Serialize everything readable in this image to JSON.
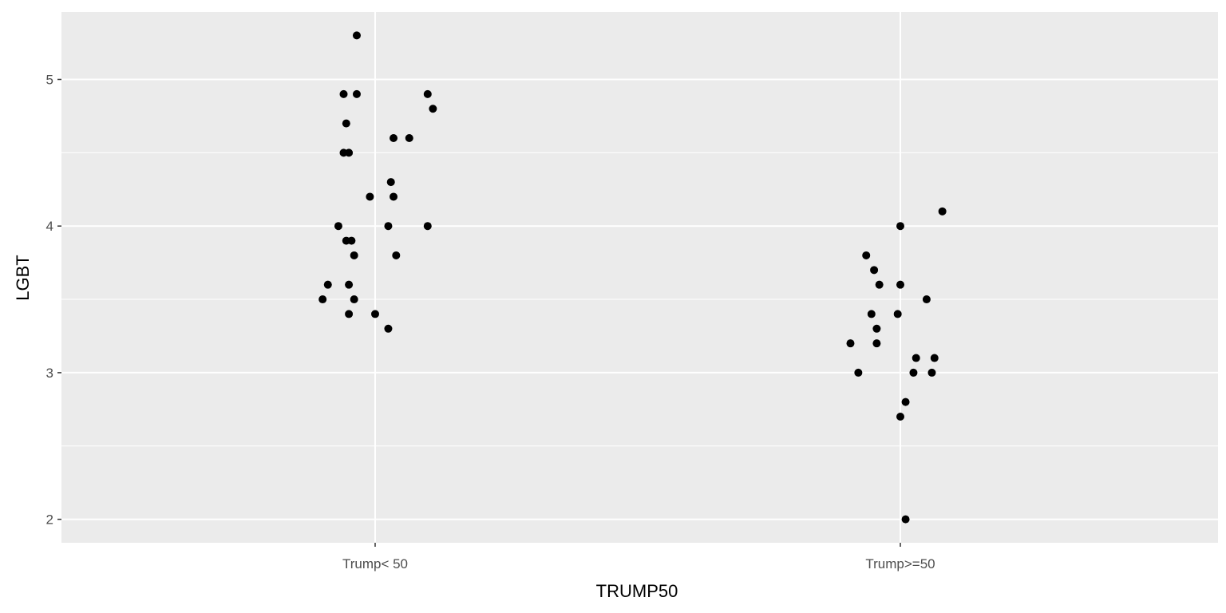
{
  "chart_data": {
    "type": "scatter",
    "title": "",
    "xlabel": "TRUMP50",
    "ylabel": "LGBT",
    "categories": [
      "Trump< 50",
      "Trump>=50"
    ],
    "ylim": [
      1.84,
      5.46
    ],
    "yticks": [
      2,
      3,
      4,
      5
    ],
    "grid": true,
    "background": "#ebebeb",
    "gridline_color": "#ffffff",
    "point_color": "#000000",
    "points": [
      {
        "category": "Trump< 50",
        "jitter": -0.07,
        "y": 5.3
      },
      {
        "category": "Trump< 50",
        "jitter": -0.12,
        "y": 4.9
      },
      {
        "category": "Trump< 50",
        "jitter": -0.07,
        "y": 4.9
      },
      {
        "category": "Trump< 50",
        "jitter": 0.2,
        "y": 4.9
      },
      {
        "category": "Trump< 50",
        "jitter": 0.22,
        "y": 4.8
      },
      {
        "category": "Trump< 50",
        "jitter": -0.11,
        "y": 4.7
      },
      {
        "category": "Trump< 50",
        "jitter": 0.07,
        "y": 4.6
      },
      {
        "category": "Trump< 50",
        "jitter": 0.13,
        "y": 4.6
      },
      {
        "category": "Trump< 50",
        "jitter": -0.12,
        "y": 4.5
      },
      {
        "category": "Trump< 50",
        "jitter": -0.1,
        "y": 4.5
      },
      {
        "category": "Trump< 50",
        "jitter": 0.06,
        "y": 4.3
      },
      {
        "category": "Trump< 50",
        "jitter": -0.02,
        "y": 4.2
      },
      {
        "category": "Trump< 50",
        "jitter": 0.07,
        "y": 4.2
      },
      {
        "category": "Trump< 50",
        "jitter": -0.14,
        "y": 4.0
      },
      {
        "category": "Trump< 50",
        "jitter": 0.05,
        "y": 4.0
      },
      {
        "category": "Trump< 50",
        "jitter": 0.2,
        "y": 4.0
      },
      {
        "category": "Trump< 50",
        "jitter": -0.11,
        "y": 3.9
      },
      {
        "category": "Trump< 50",
        "jitter": -0.09,
        "y": 3.9
      },
      {
        "category": "Trump< 50",
        "jitter": -0.08,
        "y": 3.8
      },
      {
        "category": "Trump< 50",
        "jitter": 0.08,
        "y": 3.8
      },
      {
        "category": "Trump< 50",
        "jitter": -0.18,
        "y": 3.6
      },
      {
        "category": "Trump< 50",
        "jitter": -0.1,
        "y": 3.6
      },
      {
        "category": "Trump< 50",
        "jitter": -0.2,
        "y": 3.5
      },
      {
        "category": "Trump< 50",
        "jitter": -0.08,
        "y": 3.5
      },
      {
        "category": "Trump< 50",
        "jitter": -0.1,
        "y": 3.4
      },
      {
        "category": "Trump< 50",
        "jitter": 0.0,
        "y": 3.4
      },
      {
        "category": "Trump< 50",
        "jitter": 0.05,
        "y": 3.3
      },
      {
        "category": "Trump>=50",
        "jitter": 0.16,
        "y": 4.1
      },
      {
        "category": "Trump>=50",
        "jitter": 0.0,
        "y": 4.0
      },
      {
        "category": "Trump>=50",
        "jitter": -0.13,
        "y": 3.8
      },
      {
        "category": "Trump>=50",
        "jitter": -0.1,
        "y": 3.7
      },
      {
        "category": "Trump>=50",
        "jitter": -0.08,
        "y": 3.6
      },
      {
        "category": "Trump>=50",
        "jitter": 0.0,
        "y": 3.6
      },
      {
        "category": "Trump>=50",
        "jitter": 0.1,
        "y": 3.5
      },
      {
        "category": "Trump>=50",
        "jitter": -0.11,
        "y": 3.4
      },
      {
        "category": "Trump>=50",
        "jitter": -0.01,
        "y": 3.4
      },
      {
        "category": "Trump>=50",
        "jitter": -0.09,
        "y": 3.3
      },
      {
        "category": "Trump>=50",
        "jitter": -0.19,
        "y": 3.2
      },
      {
        "category": "Trump>=50",
        "jitter": -0.09,
        "y": 3.2
      },
      {
        "category": "Trump>=50",
        "jitter": 0.06,
        "y": 3.1
      },
      {
        "category": "Trump>=50",
        "jitter": 0.13,
        "y": 3.1
      },
      {
        "category": "Trump>=50",
        "jitter": -0.16,
        "y": 3.0
      },
      {
        "category": "Trump>=50",
        "jitter": 0.05,
        "y": 3.0
      },
      {
        "category": "Trump>=50",
        "jitter": 0.12,
        "y": 3.0
      },
      {
        "category": "Trump>=50",
        "jitter": 0.02,
        "y": 2.8
      },
      {
        "category": "Trump>=50",
        "jitter": 0.0,
        "y": 2.7
      },
      {
        "category": "Trump>=50",
        "jitter": 0.02,
        "y": 2.0
      }
    ]
  }
}
